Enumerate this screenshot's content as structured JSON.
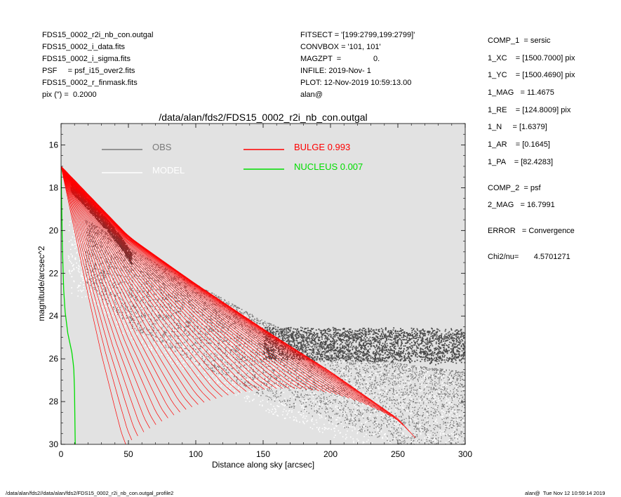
{
  "header_left": [
    "FDS15_0002_r2i_nb_con.outgal",
    "FDS15_0002_i_data.fits",
    "FDS15_0002_i_sigma.fits",
    "PSF     = psf_i15_over2.fits",
    "FDS15_0002_r_finmask.fits",
    "pix (\") =  0.2000"
  ],
  "header_mid": [
    "FITSECT = '[199:2799,199:2799]'",
    "CONVBOX = '101, 101'",
    "MAGZPT  =               0.",
    "INFILE: 2019-Nov- 1",
    "PLOT: 12-Nov-2019 10:59:13.00",
    "alan@"
  ],
  "fit_params": {
    "group1": [
      "COMP_1  = sersic",
      "1_XC    = [1500.7000] pix",
      "1_YC    = [1500.4690] pix",
      "1_MAG   = 11.4675",
      "1_RE    = [124.8009] pix",
      "1_N     = [1.6379]",
      "1_AR    = [0.1645]",
      "1_PA    = [82.4283]"
    ],
    "group2": [
      "COMP_2  = psf",
      "2_MAG   = 16.7991"
    ],
    "error": "ERROR   = Convergence",
    "chi2": "Chi2/nu=       4.5701271"
  },
  "footer_left": "/data/alan/fds2//data/alan/fds2/FDS15_0002_r2i_nb_con.outgal_profile2",
  "footer_right": "alan@  Tue Nov 12 10:59:14 2019",
  "chart_data": {
    "type": "scatter",
    "title": "/data/alan/fds2/FDS15_0002_r2i_nb_con.outgal",
    "xlabel": "Distance along sky [arcsec]",
    "ylabel": "magnitude/arcsec^2",
    "xlim": [
      0,
      300
    ],
    "ylim": [
      30,
      15
    ],
    "y_inverted": true,
    "x_ticks": [
      0,
      50,
      100,
      150,
      200,
      250,
      300
    ],
    "y_ticks": [
      16,
      18,
      20,
      22,
      24,
      26,
      28,
      30
    ],
    "grid": false,
    "background": "#e2e2e2",
    "legend": [
      {
        "name": "OBS",
        "color": "#7a7a7a"
      },
      {
        "name": "MODEL",
        "color": "#ffffff"
      },
      {
        "name": "BULGE  0.993",
        "color": "#ff0000"
      },
      {
        "name": "NUCLEUS  0.007",
        "color": "#00dd00"
      }
    ],
    "series": [
      {
        "name": "BULGE  0.993",
        "kind": "line-fan",
        "color": "#ff0000",
        "inner_envelope": {
          "x": [
            0,
            10,
            20,
            30,
            40,
            45,
            48
          ],
          "y": [
            17.0,
            20.0,
            23.0,
            25.8,
            28.3,
            29.5,
            30.0
          ]
        },
        "outer_envelope": {
          "x": [
            0,
            50,
            100,
            150,
            200,
            250,
            263
          ],
          "y": [
            17.0,
            20.3,
            22.5,
            24.6,
            26.6,
            28.8,
            29.7
          ]
        }
      },
      {
        "name": "NUCLEUS  0.007",
        "kind": "line",
        "color": "#00dd00",
        "x": [
          0,
          0.5,
          1,
          2,
          3,
          5,
          8,
          9,
          9.5,
          10,
          10.5
        ],
        "y": [
          17.1,
          19.0,
          20.8,
          22.8,
          23.8,
          24.8,
          25.7,
          26.2,
          26.5,
          27.5,
          30.0
        ]
      },
      {
        "name": "OBS",
        "kind": "scatter",
        "color": "#555555",
        "dense_streak": {
          "x": [
            7,
            15,
            25,
            35,
            45,
            52
          ],
          "y": [
            17.9,
            18.4,
            19.1,
            19.8,
            20.6,
            21.3
          ]
        },
        "sky_band": {
          "x": [
            150,
            300
          ],
          "y": [
            24.5,
            26.0
          ]
        },
        "cloud_upper": {
          "x": [
            20,
            50,
            100,
            150,
            200,
            250,
            300
          ],
          "y": [
            19.5,
            20.8,
            22.5,
            24.2,
            25.5,
            26.2,
            26.6
          ]
        },
        "cloud_lower": {
          "x": [
            20,
            50,
            100,
            150,
            200,
            250,
            300
          ],
          "y": [
            22.5,
            24.5,
            26.2,
            27.8,
            29.0,
            30.0,
            30.0
          ]
        }
      }
    ]
  }
}
